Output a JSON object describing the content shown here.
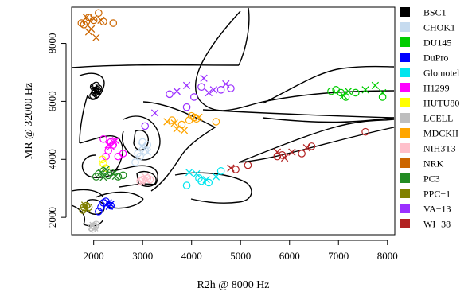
{
  "chart_data": {
    "type": "scatter",
    "xlabel": "R2h @ 8000 Hz",
    "ylabel": "MR @ 32000 Hz",
    "xlim": [
      1550,
      8150
    ],
    "ylim": [
      1400,
      9250
    ],
    "x_ticks": [
      2000,
      3000,
      4000,
      5000,
      6000,
      7000,
      8000
    ],
    "y_ticks": [
      2000,
      4000,
      6000,
      8000
    ],
    "grid": false,
    "legend_position": "right",
    "marker_styles": [
      "circle-open",
      "cross"
    ],
    "series": [
      {
        "name": "BSC1",
        "color": "#000000",
        "points": [
          [
            2020,
            6300
          ],
          [
            2080,
            6400
          ],
          [
            2000,
            6500
          ],
          [
            2050,
            6550
          ],
          [
            1990,
            6200
          ],
          [
            2060,
            6250
          ],
          [
            2100,
            6450
          ],
          [
            2030,
            6380
          ]
        ],
        "points_x": [
          [
            2040,
            6350
          ],
          [
            2010,
            6420
          ],
          [
            2070,
            6320
          ]
        ]
      },
      {
        "name": "CHOK1",
        "color": "#c6dbef",
        "points": [
          [
            2950,
            4100
          ],
          [
            3050,
            4300
          ],
          [
            3000,
            4600
          ],
          [
            2900,
            4200
          ],
          [
            3100,
            4500
          ],
          [
            2850,
            3900
          ]
        ],
        "points_x": [
          [
            3050,
            4350
          ],
          [
            2980,
            4450
          ],
          [
            3100,
            4250
          ]
        ]
      },
      {
        "name": "DU145",
        "color": "#00cc00",
        "points": [
          [
            6850,
            6350
          ],
          [
            7050,
            6300
          ],
          [
            7150,
            6150
          ],
          [
            7350,
            6300
          ],
          [
            7900,
            6150
          ],
          [
            6950,
            6400
          ]
        ],
        "points_x": [
          [
            7100,
            6200
          ],
          [
            7550,
            6400
          ],
          [
            7750,
            6550
          ],
          [
            7900,
            6300
          ],
          [
            7200,
            6350
          ]
        ]
      },
      {
        "name": "DuPro",
        "color": "#0000ff",
        "points": [
          [
            2150,
            2350
          ],
          [
            2250,
            2550
          ],
          [
            2100,
            2200
          ],
          [
            2350,
            2400
          ],
          [
            2200,
            2500
          ]
        ],
        "points_x": [
          [
            2300,
            2500
          ],
          [
            2350,
            2450
          ],
          [
            2250,
            2420
          ],
          [
            2320,
            2380
          ]
        ]
      },
      {
        "name": "Glomotel",
        "color": "#00e5ee",
        "points": [
          [
            3900,
            3100
          ],
          [
            4150,
            3350
          ],
          [
            4350,
            3200
          ],
          [
            4600,
            3600
          ],
          [
            4200,
            3250
          ]
        ],
        "points_x": [
          [
            3950,
            3550
          ],
          [
            4100,
            3500
          ],
          [
            4300,
            3300
          ],
          [
            4500,
            3400
          ]
        ]
      },
      {
        "name": "H1299",
        "color": "#ff00ff",
        "points": [
          [
            2200,
            4700
          ],
          [
            2300,
            4300
          ],
          [
            2400,
            4500
          ],
          [
            2500,
            4100
          ],
          [
            2600,
            4200
          ],
          [
            2250,
            4100
          ],
          [
            2350,
            4600
          ]
        ],
        "points_x": [
          [
            2300,
            4500
          ],
          [
            2400,
            4600
          ],
          [
            2450,
            4650
          ],
          [
            2350,
            4450
          ]
        ]
      },
      {
        "name": "HUTU80",
        "color": "#ffff00",
        "points": [
          [
            2200,
            3850
          ],
          [
            2250,
            3700
          ],
          [
            2180,
            4000
          ]
        ],
        "points_x": []
      },
      {
        "name": "LCELL",
        "color": "#bebebe",
        "points": [
          [
            1950,
            1650
          ],
          [
            2000,
            1700
          ],
          [
            2050,
            1750
          ],
          [
            1980,
            1600
          ],
          [
            2030,
            1680
          ]
        ],
        "points_x": [
          [
            1990,
            1720
          ],
          [
            2020,
            1640
          ]
        ]
      },
      {
        "name": "MDCKII",
        "color": "#ffa500",
        "points": [
          [
            3600,
            5350
          ],
          [
            3950,
            5350
          ],
          [
            4050,
            5450
          ],
          [
            4100,
            5400
          ],
          [
            4500,
            5300
          ],
          [
            3800,
            5200
          ],
          [
            4000,
            5500
          ]
        ],
        "points_x": [
          [
            3500,
            5300
          ],
          [
            3700,
            5050
          ],
          [
            3850,
            5000
          ],
          [
            4150,
            5450
          ],
          [
            3650,
            5250
          ]
        ]
      },
      {
        "name": "NIH3T3",
        "color": "#ffc0cb",
        "points": [
          [
            3000,
            3300
          ],
          [
            3100,
            3350
          ],
          [
            2950,
            3250
          ],
          [
            3150,
            3300
          ]
        ],
        "points_x": [
          [
            3050,
            3400
          ],
          [
            3100,
            3280
          ],
          [
            2980,
            3220
          ]
        ]
      },
      {
        "name": "NRK",
        "color": "#cc6600",
        "points": [
          [
            1750,
            8700
          ],
          [
            1850,
            8750
          ],
          [
            1900,
            8900
          ],
          [
            2100,
            9050
          ],
          [
            2200,
            8750
          ],
          [
            2400,
            8700
          ],
          [
            2000,
            8800
          ],
          [
            1800,
            8650
          ]
        ],
        "points_x": [
          [
            1850,
            8900
          ],
          [
            1950,
            8500
          ],
          [
            2050,
            8200
          ],
          [
            2000,
            8850
          ],
          [
            2150,
            8800
          ],
          [
            1900,
            8400
          ]
        ]
      },
      {
        "name": "PC3",
        "color": "#228b22",
        "points": [
          [
            2100,
            3500
          ],
          [
            2200,
            3600
          ],
          [
            2350,
            3550
          ],
          [
            2500,
            3400
          ],
          [
            2600,
            3450
          ],
          [
            2050,
            3400
          ],
          [
            2300,
            3450
          ]
        ],
        "points_x": [
          [
            2150,
            3550
          ],
          [
            2250,
            3650
          ],
          [
            2400,
            3500
          ],
          [
            2450,
            3420
          ],
          [
            2200,
            3380
          ]
        ]
      },
      {
        "name": "PPC−1",
        "color": "#808000",
        "points": [
          [
            1800,
            2350
          ],
          [
            1850,
            2400
          ],
          [
            1780,
            2250
          ],
          [
            1900,
            2350
          ]
        ],
        "points_x": [
          [
            1830,
            2320
          ],
          [
            1870,
            2280
          ],
          [
            1820,
            2420
          ]
        ]
      },
      {
        "name": "VA−13",
        "color": "#9b30ff",
        "points": [
          [
            3550,
            6250
          ],
          [
            3900,
            5800
          ],
          [
            4200,
            6500
          ],
          [
            4800,
            6450
          ],
          [
            3050,
            5150
          ],
          [
            4050,
            6150
          ],
          [
            4600,
            6400
          ]
        ],
        "points_x": [
          [
            3700,
            6350
          ],
          [
            3900,
            6550
          ],
          [
            4250,
            6800
          ],
          [
            4450,
            6400
          ],
          [
            4700,
            6600
          ],
          [
            3250,
            5600
          ],
          [
            4350,
            6300
          ]
        ]
      },
      {
        "name": "WI−38",
        "color": "#b22222",
        "points": [
          [
            4900,
            3650
          ],
          [
            5150,
            3800
          ],
          [
            5750,
            4100
          ],
          [
            6250,
            4200
          ],
          [
            6450,
            4450
          ],
          [
            7550,
            4950
          ],
          [
            5850,
            4150
          ]
        ],
        "points_x": [
          [
            4800,
            3700
          ],
          [
            5750,
            4250
          ],
          [
            5900,
            4050
          ],
          [
            6350,
            4400
          ],
          [
            6050,
            4250
          ]
        ]
      }
    ]
  }
}
